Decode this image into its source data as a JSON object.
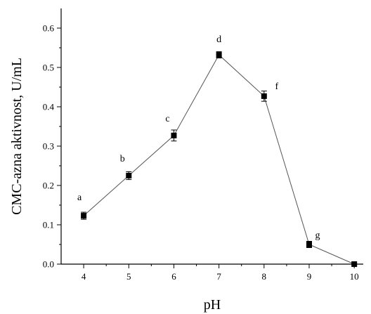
{
  "chart_data": {
    "type": "line",
    "xlabel": "pH",
    "ylabel": "CMC-azna aktivnost, U/mL",
    "xlim": [
      3.5,
      10.2
    ],
    "ylim": [
      0.0,
      0.65
    ],
    "x_ticks": [
      "4",
      "5",
      "6",
      "7",
      "8",
      "9",
      "10"
    ],
    "y_ticks": [
      "0.0",
      "0.1",
      "0.2",
      "0.3",
      "0.4",
      "0.5",
      "0.6"
    ],
    "grid": false,
    "series": [
      {
        "x": [
          4,
          5,
          6,
          7,
          8,
          9,
          10
        ],
        "y": [
          0.123,
          0.225,
          0.327,
          0.532,
          0.427,
          0.05,
          0.0
        ],
        "error": [
          0.009,
          0.01,
          0.014,
          0.008,
          0.013,
          0.008,
          0.0
        ],
        "labels": [
          "a",
          "b",
          "c",
          "d",
          "f",
          "g",
          ""
        ]
      }
    ]
  }
}
